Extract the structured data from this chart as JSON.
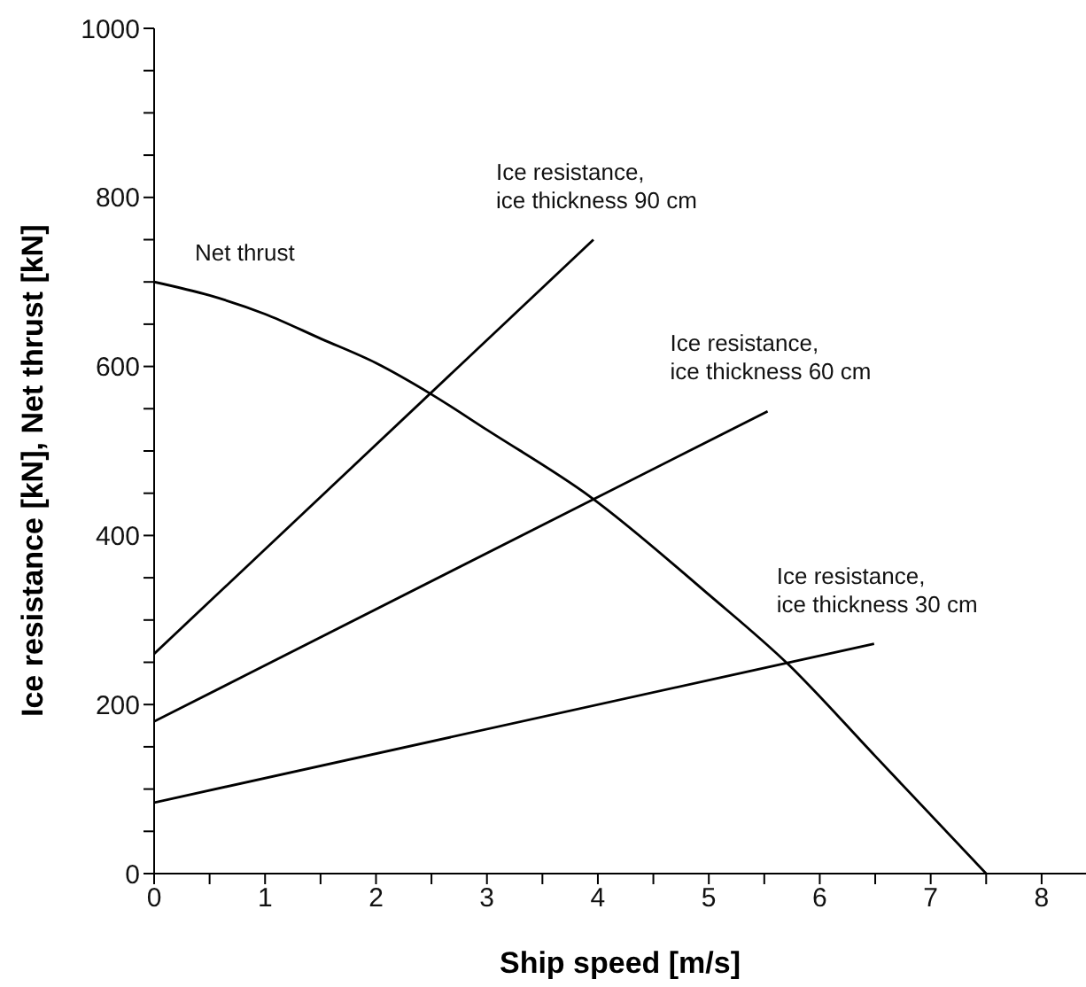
{
  "chart_data": {
    "type": "line",
    "xlabel": "Ship speed [m/s]",
    "ylabel": "Ice resistance [kN], Net thrust [kN]",
    "xlim": [
      0,
      8.4
    ],
    "ylim": [
      0,
      1000
    ],
    "xticks": [
      0,
      {
        "value": 0.5,
        "label": null
      },
      1,
      {
        "value": 1.5,
        "label": null
      },
      2,
      {
        "value": 2.5,
        "label": null
      },
      3,
      {
        "value": 3.5,
        "label": null
      },
      4,
      {
        "value": 4.5,
        "label": null
      },
      5,
      {
        "value": 5.5,
        "label": null
      },
      6,
      {
        "value": 6.5,
        "label": null
      },
      7,
      {
        "value": 7.5,
        "label": null
      },
      8
    ],
    "yticks": [
      0,
      {
        "value": 50,
        "label": null
      },
      {
        "value": 100,
        "label": null
      },
      {
        "value": 150,
        "label": null
      },
      200,
      {
        "value": 250,
        "label": null
      },
      {
        "value": 300,
        "label": null
      },
      {
        "value": 350,
        "label": null
      },
      400,
      {
        "value": 450,
        "label": null
      },
      {
        "value": 500,
        "label": null
      },
      {
        "value": 550,
        "label": null
      },
      600,
      {
        "value": 650,
        "label": null
      },
      {
        "value": 700,
        "label": null
      },
      {
        "value": 750,
        "label": null
      },
      800,
      {
        "value": 850,
        "label": null
      },
      {
        "value": 900,
        "label": null
      },
      {
        "value": 950,
        "label": null
      },
      1000
    ],
    "grid": false,
    "legend": false,
    "marker": "none",
    "line_style": "solid",
    "series": [
      {
        "name": "Net thrust",
        "color": "#000000",
        "x": [
          0,
          0.5,
          1,
          1.5,
          2,
          2.5,
          3,
          3.93,
          5,
          5.72,
          6.5,
          7.5
        ],
        "values": [
          700,
          684,
          662,
          633,
          604,
          567,
          525,
          446,
          330,
          247,
          139,
          0
        ]
      },
      {
        "name": "Ice resistance, ice thickness 90 cm",
        "color": "#000000",
        "x": [
          0,
          3.96
        ],
        "values": [
          260,
          750
        ]
      },
      {
        "name": "Ice resistance, ice thickness 60 cm",
        "color": "#000000",
        "x": [
          0,
          5.53
        ],
        "values": [
          180,
          547
        ]
      },
      {
        "name": "Ice resistance, ice thickness 30 cm",
        "color": "#000000",
        "x": [
          0,
          6.49
        ],
        "values": [
          84,
          272
        ]
      }
    ]
  }
}
